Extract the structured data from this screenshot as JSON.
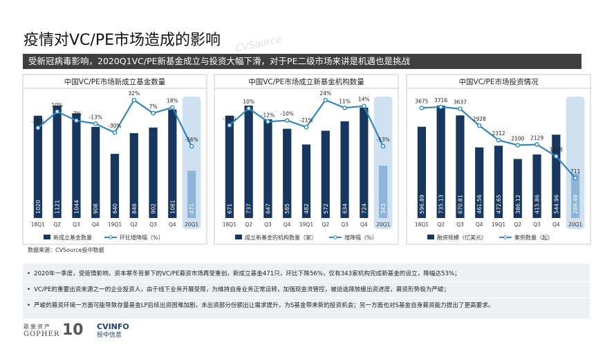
{
  "header": {
    "title": "疫情对VC/PE市场造成的影响",
    "subtitle": "受新冠病毒影响，2020Q1VC/PE新基金成立与投资大幅下滑，对于PE二级市场来讲是机遇也是挑战"
  },
  "watermark": "CVSource",
  "chart_data": [
    {
      "type": "bar_line",
      "title": "中国VC/PE市场新成立基金数量",
      "categories": [
        "18Q1",
        "Q2",
        "Q3",
        "Q4",
        "19Q1",
        "Q2",
        "Q3",
        "Q4",
        "20Q1"
      ],
      "highlight_color": "#cfe0f0",
      "series": [
        {
          "name": "新成立基金数量",
          "type": "bar",
          "color": "#17375e",
          "colors": [
            "#17375e",
            "#17375e",
            "#17375e",
            "#17375e",
            "#17375e",
            "#17375e",
            "#17375e",
            "#17375e",
            "#8fb4d9"
          ],
          "values": [
            1020,
            1121,
            1044,
            908,
            640,
            846,
            902,
            1081,
            471
          ]
        },
        {
          "name": "环比增降幅（%）",
          "type": "line",
          "color": "#2e86c1",
          "values": [
            -21,
            10,
            -7,
            -13,
            -30,
            32,
            7,
            18,
            -56
          ],
          "value_labels": [
            "-21%",
            "10%",
            "-7%",
            "-13%",
            "-30%",
            "32%",
            "7%",
            "18%",
            "-56%"
          ]
        }
      ]
    },
    {
      "type": "bar_line",
      "title": "中国VC/PE市场成立新基金机构数量",
      "categories": [
        "18Q1",
        "Q2",
        "Q3",
        "Q4",
        "19Q1",
        "Q2",
        "Q3",
        "Q4",
        "20Q1"
      ],
      "highlight_color": "#cfe0f0",
      "series": [
        {
          "name": "成立新基金的机构数量（家）",
          "type": "bar",
          "color": "#17375e",
          "colors": [
            "#17375e",
            "#17375e",
            "#17375e",
            "#17375e",
            "#17375e",
            "#17375e",
            "#17375e",
            "#17375e",
            "#8fb4d9"
          ],
          "values": [
            671,
            737,
            647,
            585,
            482,
            572,
            634,
            724,
            343
          ]
        },
        {
          "name": "增降幅（%）",
          "type": "line",
          "color": "#2e86c1",
          "values": [
            -18,
            10,
            -12,
            -10,
            -21,
            24,
            11,
            14,
            -53
          ],
          "value_labels": [
            "-18%",
            "10%",
            "-12%",
            "-10%",
            "-21%",
            "24%",
            "11%",
            "14%",
            "-53%"
          ]
        }
      ]
    },
    {
      "type": "bar_line",
      "title": "中国VC/PE市场投资情况",
      "categories": [
        "18Q1",
        "Q2",
        "Q3",
        "Q4",
        "19Q1",
        "Q2",
        "Q3",
        "Q4",
        "20Q1"
      ],
      "highlight_color": "#cfe0f0",
      "series": [
        {
          "name": "融资规模（亿美元）",
          "type": "bar",
          "color": "#17375e",
          "colors": [
            "#17375e",
            "#17375e",
            "#17375e",
            "#17375e",
            "#17375e",
            "#17375e",
            "#17375e",
            "#17375e",
            "#8fb4d9"
          ],
          "values": [
            596.89,
            735.13,
            670.81,
            461.56,
            472.65,
            386.12,
            415.86,
            544.96,
            289.49
          ]
        },
        {
          "name": "案例数量（起）",
          "type": "line",
          "color": "#2e86c1",
          "values": [
            3675,
            3716,
            3637,
            2928,
            2312,
            2100,
            2129,
            1628,
            711
          ]
        }
      ]
    }
  ],
  "source": "数据来源：CVSource投中数据",
  "bullets": [
    "2020年一季度，受疫情影响，资本寒冬背景下的VC/PE募资市场再受重创，新成立基金471只，环比下降56%，仅有343家机构完成新基金的设立，降幅达53%；",
    "VC/PE的重要出资来源之一的企业投资人，由于线下业务开展受限，为维持自身业务正常运转，加强现金流管控，被迫选择放缓出资进度，募资形势极为严峻；",
    "严峻的募资环境一方面可能导致存量基金LP后续出资困难加剧，未出资部分份额出让需求提升，为S基金带来新的投资机会；另一方面也对S基金自身募资能力提出了更高要求。"
  ],
  "logos": {
    "gopher_cn": "歌斐资产",
    "gopher_en": "GOPHER",
    "anniversary": "10",
    "cvinfo_en": "CVINFO",
    "cvinfo_cn": "投中信息"
  }
}
